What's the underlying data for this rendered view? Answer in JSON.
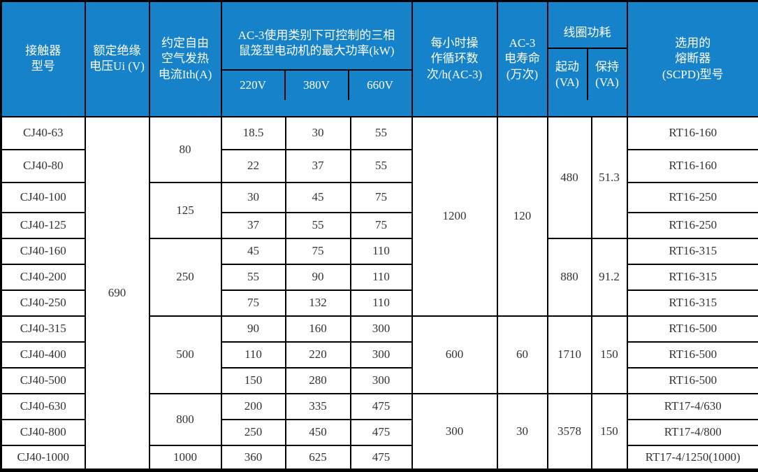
{
  "colors": {
    "header_bg": "#1582C9",
    "header_text": "#FFFFFF",
    "body_text": "#333333",
    "border": "#000000"
  },
  "header": {
    "model": "接触器\n型号",
    "rated_voltage": "额定绝缘\n电压Ui (V)",
    "thermal_current": "约定自由\n空气发热\n电流Ith(A)",
    "kw_group": "AC-3使用类别下可控制的三相\n鼠笼型电动机的最大功率(kW)",
    "kw_220": "220V",
    "kw_380": "380V",
    "kw_660": "660V",
    "cycles": "每小时操\n作循环数\n次/h(AC-3)",
    "life": "AC-3\n电寿命\n(万次)",
    "coil_group": "线圈功耗",
    "coil_start": "起动\n(VA)",
    "coil_hold": "保持\n(VA)",
    "fuse": "选用的\n熔断器\n(SCPD)型号"
  },
  "rows": [
    {
      "model": "CJ40-63",
      "kw220": "18.5",
      "kw380": "30",
      "kw660": "55",
      "fuse": "RT16-160"
    },
    {
      "model": "CJ40-80",
      "kw220": "22",
      "kw380": "37",
      "kw660": "55",
      "fuse": "RT16-160"
    },
    {
      "model": "CJ40-100",
      "kw220": "30",
      "kw380": "45",
      "kw660": "75",
      "fuse": "RT16-250"
    },
    {
      "model": "CJ40-125",
      "kw220": "37",
      "kw380": "55",
      "kw660": "75",
      "fuse": "RT16-250"
    },
    {
      "model": "CJ40-160",
      "kw220": "45",
      "kw380": "75",
      "kw660": "110",
      "fuse": "RT16-315"
    },
    {
      "model": "CJ40-200",
      "kw220": "55",
      "kw380": "90",
      "kw660": "110",
      "fuse": "RT16-315"
    },
    {
      "model": "CJ40-250",
      "kw220": "75",
      "kw380": "132",
      "kw660": "110",
      "fuse": "RT16-315"
    },
    {
      "model": "CJ40-315",
      "kw220": "90",
      "kw380": "160",
      "kw660": "300",
      "fuse": "RT16-500"
    },
    {
      "model": "CJ40-400",
      "kw220": "110",
      "kw380": "220",
      "kw660": "300",
      "fuse": "RT16-500"
    },
    {
      "model": "CJ40-500",
      "kw220": "150",
      "kw380": "280",
      "kw660": "300",
      "fuse": "RT16-500"
    },
    {
      "model": "CJ40-630",
      "kw220": "200",
      "kw380": "335",
      "kw660": "475",
      "fuse": "RT17-4/630"
    },
    {
      "model": "CJ40-800",
      "kw220": "250",
      "kw380": "450",
      "kw660": "475",
      "fuse": "RT17-4/800"
    },
    {
      "model": "CJ40-1000",
      "kw220": "360",
      "kw380": "625",
      "kw660": "475",
      "fuse": "RT17-4/1250(1000)"
    }
  ],
  "merges": {
    "ui_value": "690",
    "ith": [
      "80",
      "125",
      "250",
      "500",
      "800",
      "1000"
    ],
    "ops": [
      {
        "cycles": "1200",
        "life": "120"
      },
      {
        "cycles": "600",
        "life": "60"
      },
      {
        "cycles": "300",
        "life": "30"
      }
    ],
    "coil": [
      {
        "start": "480",
        "hold": "51.3"
      },
      {
        "start": "880",
        "hold": "91.2"
      },
      {
        "start": "1710",
        "hold": "150"
      },
      {
        "start": "3578",
        "hold": "150"
      }
    ]
  }
}
